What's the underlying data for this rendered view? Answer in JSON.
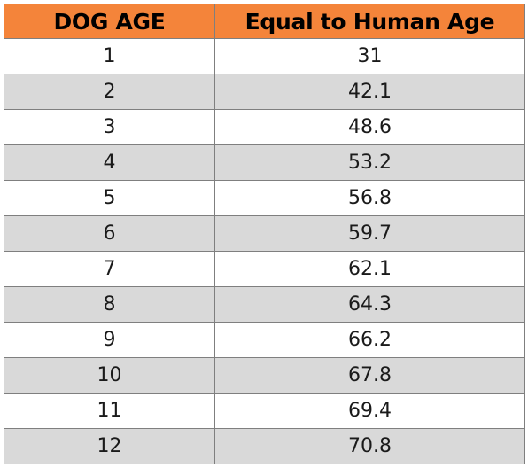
{
  "table": {
    "headers": [
      "DOG AGE",
      "Equal to Human Age"
    ],
    "rows": [
      [
        "1",
        "31"
      ],
      [
        "2",
        "42.1"
      ],
      [
        "3",
        "48.6"
      ],
      [
        "4",
        "53.2"
      ],
      [
        "5",
        "56.8"
      ],
      [
        "6",
        "59.7"
      ],
      [
        "7",
        "62.1"
      ],
      [
        "8",
        "64.3"
      ],
      [
        "9",
        "66.2"
      ],
      [
        "10",
        "67.8"
      ],
      [
        "11",
        "69.4"
      ],
      [
        "12",
        "70.8"
      ]
    ]
  },
  "colors": {
    "header_bg": "#f4843a",
    "stripe_bg": "#d9d9d9",
    "border": "#7f7f7f"
  }
}
